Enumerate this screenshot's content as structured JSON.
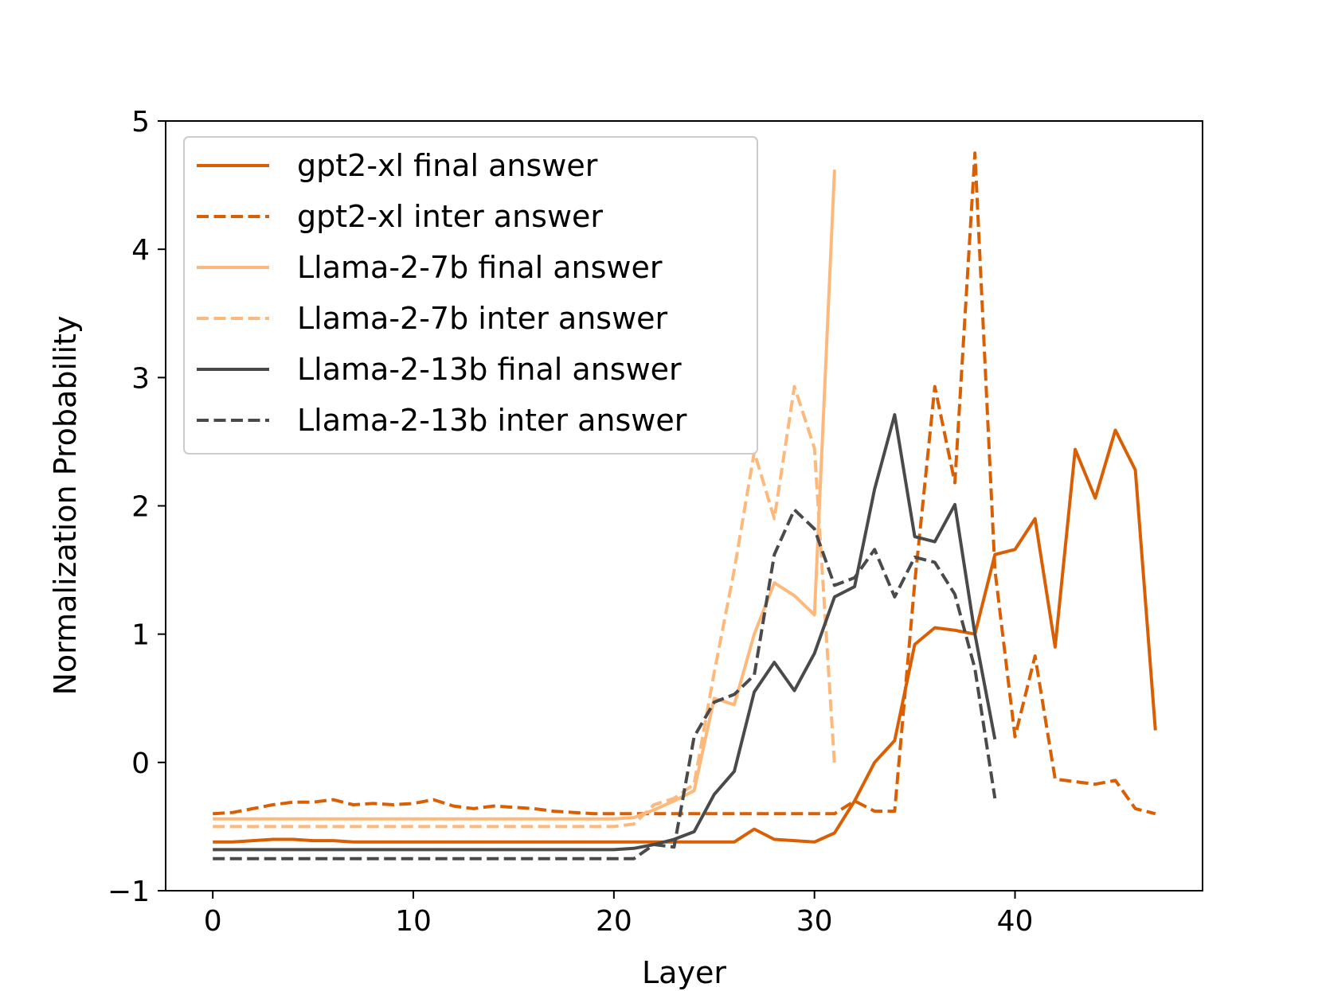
{
  "chart_data": {
    "type": "line",
    "xlabel": "Layer",
    "ylabel": "Normalization Probability",
    "xlim": [
      -2.35,
      49.35
    ],
    "ylim": [
      -1,
      5
    ],
    "xticks": [
      0,
      10,
      20,
      30,
      40
    ],
    "yticks": [
      -1,
      0,
      1,
      2,
      3,
      4,
      5
    ],
    "ytick_labels": [
      "−1",
      "0",
      "1",
      "2",
      "3",
      "4",
      "5"
    ],
    "grid": false,
    "legend_position": "upper-left",
    "series": [
      {
        "name": "gpt2-xl final answer",
        "color": "#d95f02",
        "dash": "solid",
        "x": [
          0,
          1,
          2,
          3,
          4,
          5,
          6,
          7,
          8,
          9,
          10,
          11,
          12,
          13,
          14,
          15,
          16,
          17,
          18,
          19,
          20,
          21,
          22,
          23,
          24,
          25,
          26,
          27,
          28,
          29,
          30,
          31,
          32,
          33,
          34,
          35,
          36,
          37,
          38,
          39,
          40,
          41,
          42,
          43,
          44,
          45,
          46,
          47
        ],
        "y": [
          -0.62,
          -0.62,
          -0.61,
          -0.6,
          -0.6,
          -0.61,
          -0.61,
          -0.62,
          -0.62,
          -0.62,
          -0.62,
          -0.62,
          -0.62,
          -0.62,
          -0.62,
          -0.62,
          -0.62,
          -0.62,
          -0.62,
          -0.62,
          -0.62,
          -0.62,
          -0.62,
          -0.62,
          -0.62,
          -0.62,
          -0.62,
          -0.52,
          -0.6,
          -0.61,
          -0.62,
          -0.55,
          -0.3,
          0.0,
          0.17,
          0.92,
          1.05,
          1.03,
          1.0,
          1.62,
          1.66,
          1.9,
          0.9,
          2.44,
          2.06,
          2.59,
          2.28,
          0.25
        ]
      },
      {
        "name": "gpt2-xl inter answer",
        "color": "#d95f02",
        "dash": "dashed",
        "x": [
          0,
          1,
          2,
          3,
          4,
          5,
          6,
          7,
          8,
          9,
          10,
          11,
          12,
          13,
          14,
          15,
          16,
          17,
          18,
          19,
          20,
          21,
          22,
          23,
          24,
          25,
          26,
          27,
          28,
          29,
          30,
          31,
          32,
          33,
          34,
          35,
          36,
          37,
          38,
          39,
          40,
          41,
          42,
          43,
          44,
          45,
          46,
          47
        ],
        "y": [
          -0.4,
          -0.39,
          -0.36,
          -0.33,
          -0.31,
          -0.31,
          -0.29,
          -0.33,
          -0.32,
          -0.33,
          -0.32,
          -0.29,
          -0.34,
          -0.36,
          -0.34,
          -0.35,
          -0.36,
          -0.38,
          -0.39,
          -0.4,
          -0.4,
          -0.4,
          -0.4,
          -0.4,
          -0.4,
          -0.4,
          -0.4,
          -0.4,
          -0.4,
          -0.4,
          -0.4,
          -0.4,
          -0.3,
          -0.38,
          -0.38,
          1.4,
          2.93,
          2.18,
          4.75,
          1.5,
          0.2,
          0.83,
          -0.13,
          -0.15,
          -0.17,
          -0.14,
          -0.36,
          -0.4
        ]
      },
      {
        "name": "Llama-2-7b final answer",
        "color": "#fdb97b",
        "dash": "solid",
        "x": [
          0,
          1,
          2,
          3,
          4,
          5,
          6,
          7,
          8,
          9,
          10,
          11,
          12,
          13,
          14,
          15,
          16,
          17,
          18,
          19,
          20,
          21,
          22,
          23,
          24,
          25,
          26,
          27,
          28,
          29,
          30,
          31
        ],
        "y": [
          -0.44,
          -0.44,
          -0.44,
          -0.44,
          -0.44,
          -0.44,
          -0.44,
          -0.44,
          -0.44,
          -0.44,
          -0.44,
          -0.44,
          -0.44,
          -0.44,
          -0.44,
          -0.44,
          -0.44,
          -0.44,
          -0.44,
          -0.44,
          -0.44,
          -0.43,
          -0.37,
          -0.3,
          -0.22,
          0.5,
          0.45,
          1.0,
          1.4,
          1.3,
          1.15,
          4.62
        ]
      },
      {
        "name": "Llama-2-7b inter answer",
        "color": "#fdb97b",
        "dash": "dashed",
        "x": [
          0,
          1,
          2,
          3,
          4,
          5,
          6,
          7,
          8,
          9,
          10,
          11,
          12,
          13,
          14,
          15,
          16,
          17,
          18,
          19,
          20,
          21,
          22,
          23,
          24,
          25,
          26,
          27,
          28,
          29,
          30,
          31
        ],
        "y": [
          -0.5,
          -0.5,
          -0.5,
          -0.5,
          -0.5,
          -0.5,
          -0.5,
          -0.5,
          -0.5,
          -0.5,
          -0.5,
          -0.5,
          -0.5,
          -0.5,
          -0.5,
          -0.5,
          -0.5,
          -0.5,
          -0.5,
          -0.5,
          -0.5,
          -0.48,
          -0.33,
          -0.28,
          -0.17,
          0.7,
          1.5,
          2.42,
          1.9,
          2.93,
          2.45,
          -0.02
        ]
      },
      {
        "name": "Llama-2-13b final answer",
        "color": "#4a4a4a",
        "dash": "solid",
        "x": [
          0,
          1,
          2,
          3,
          4,
          5,
          6,
          7,
          8,
          9,
          10,
          11,
          12,
          13,
          14,
          15,
          16,
          17,
          18,
          19,
          20,
          21,
          22,
          23,
          24,
          25,
          26,
          27,
          28,
          29,
          30,
          31,
          32,
          33,
          34,
          35,
          36,
          37,
          38,
          39
        ],
        "y": [
          -0.68,
          -0.68,
          -0.68,
          -0.68,
          -0.68,
          -0.68,
          -0.68,
          -0.68,
          -0.68,
          -0.68,
          -0.68,
          -0.68,
          -0.68,
          -0.68,
          -0.68,
          -0.68,
          -0.68,
          -0.68,
          -0.68,
          -0.68,
          -0.68,
          -0.67,
          -0.64,
          -0.6,
          -0.54,
          -0.25,
          -0.07,
          0.55,
          0.78,
          0.56,
          0.85,
          1.29,
          1.37,
          2.13,
          2.71,
          1.76,
          1.72,
          2.01,
          1.0,
          0.18
        ]
      },
      {
        "name": "Llama-2-13b inter answer",
        "color": "#4a4a4a",
        "dash": "dashed",
        "x": [
          0,
          1,
          2,
          3,
          4,
          5,
          6,
          7,
          8,
          9,
          10,
          11,
          12,
          13,
          14,
          15,
          16,
          17,
          18,
          19,
          20,
          21,
          22,
          23,
          24,
          25,
          26,
          27,
          28,
          29,
          30,
          31,
          32,
          33,
          34,
          35,
          36,
          37,
          38,
          39
        ],
        "y": [
          -0.75,
          -0.75,
          -0.75,
          -0.75,
          -0.75,
          -0.75,
          -0.75,
          -0.75,
          -0.75,
          -0.75,
          -0.75,
          -0.75,
          -0.75,
          -0.75,
          -0.75,
          -0.75,
          -0.75,
          -0.75,
          -0.75,
          -0.75,
          -0.75,
          -0.75,
          -0.64,
          -0.66,
          0.2,
          0.47,
          0.53,
          0.68,
          1.62,
          1.97,
          1.82,
          1.38,
          1.44,
          1.66,
          1.29,
          1.6,
          1.56,
          1.31,
          0.73,
          -0.28
        ]
      }
    ]
  }
}
